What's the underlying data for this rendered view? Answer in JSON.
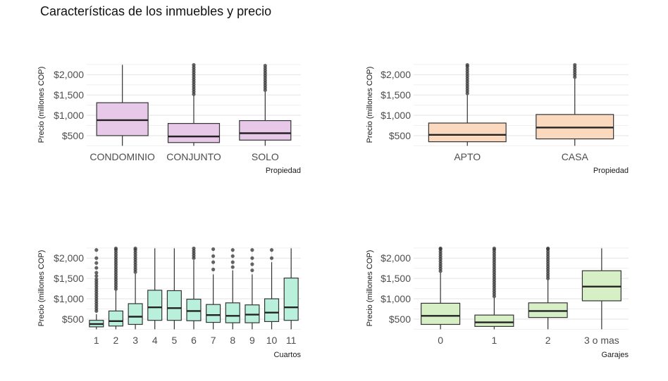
{
  "title": "Características de los inmuebles y precio",
  "chart_data": [
    {
      "type": "box",
      "ylabel": "Precio (millones COP)",
      "xlabel": "Propiedad",
      "ylim": [
        240,
        2280
      ],
      "yticks": [
        500,
        1000,
        1500,
        2000
      ],
      "ytick_labels": [
        "$500",
        "$1,000",
        "$1,500",
        "$2,000"
      ],
      "fill": "#e8c8e8",
      "outlier_color": "#333333",
      "categories": [
        "CONDOMINIO",
        "CONJUNTO",
        "SOLO"
      ],
      "boxes": [
        {
          "low": 250,
          "q1": 500,
          "median": 880,
          "q3": 1310,
          "high": 2240,
          "outliers": []
        },
        {
          "low": 250,
          "q1": 330,
          "median": 480,
          "q3": 800,
          "high": 1490,
          "outliers": [
            1520,
            1580,
            1640,
            1700,
            1760,
            1820,
            1880,
            1940,
            2000,
            2060,
            2120,
            2180,
            2240
          ]
        },
        {
          "low": 250,
          "q1": 390,
          "median": 560,
          "q3": 870,
          "high": 1580,
          "outliers": [
            1620,
            1680,
            1740,
            1800,
            1860,
            1920,
            1980,
            2040,
            2100,
            2160,
            2220
          ]
        }
      ]
    },
    {
      "type": "box",
      "ylabel": "Precio (millones COP)",
      "xlabel": "Propiedad",
      "ylim": [
        240,
        2280
      ],
      "yticks": [
        500,
        1000,
        1500,
        2000
      ],
      "ytick_labels": [
        "$500",
        "$1,000",
        "$1,500",
        "$2,000"
      ],
      "fill": "#fbd9bf",
      "outlier_color": "#333333",
      "categories": [
        "APTO",
        "CASA"
      ],
      "boxes": [
        {
          "low": 250,
          "q1": 350,
          "median": 520,
          "q3": 810,
          "high": 1500,
          "outliers": [
            1540,
            1600,
            1660,
            1720,
            1780,
            1840,
            1900,
            1960,
            2020,
            2080,
            2140,
            2200,
            2240
          ]
        },
        {
          "low": 250,
          "q1": 420,
          "median": 700,
          "q3": 1020,
          "high": 1900,
          "outliers": [
            1940,
            2000,
            2060,
            2120,
            2180,
            2240
          ]
        }
      ]
    },
    {
      "type": "box",
      "ylabel": "Precio (millones COP)",
      "xlabel": "Cuartos",
      "ylim": [
        240,
        2280
      ],
      "yticks": [
        500,
        1000,
        1500,
        2000
      ],
      "ytick_labels": [
        "$500",
        "$1,000",
        "$1,500",
        "$2,000"
      ],
      "fill": "#b8f0dc",
      "outlier_color": "#333333",
      "categories": [
        "1",
        "2",
        "3",
        "4",
        "5",
        "6",
        "7",
        "8",
        "9",
        "10",
        "11"
      ],
      "boxes": [
        {
          "low": 250,
          "q1": 310,
          "median": 380,
          "q3": 470,
          "high": 620,
          "outliers": [
            700,
            760,
            820,
            880,
            940,
            1000,
            1060,
            1120,
            1180,
            1240,
            1300,
            1360,
            1420,
            1480,
            1560,
            1640,
            1760,
            1880,
            2000,
            2200
          ]
        },
        {
          "low": 250,
          "q1": 330,
          "median": 450,
          "q3": 700,
          "high": 1200,
          "outliers": [
            1240,
            1300,
            1360,
            1420,
            1480,
            1540,
            1600,
            1660,
            1720,
            1780,
            1840,
            1900,
            1960,
            2020,
            2080,
            2140,
            2200,
            2240
          ]
        },
        {
          "low": 250,
          "q1": 370,
          "median": 560,
          "q3": 880,
          "high": 1620,
          "outliers": [
            1660,
            1720,
            1780,
            1840,
            1900,
            1960,
            2020,
            2080,
            2140,
            2200,
            2240
          ]
        },
        {
          "low": 250,
          "q1": 470,
          "median": 790,
          "q3": 1210,
          "high": 2240,
          "outliers": []
        },
        {
          "low": 250,
          "q1": 470,
          "median": 770,
          "q3": 1200,
          "high": 2240,
          "outliers": []
        },
        {
          "low": 250,
          "q1": 460,
          "median": 700,
          "q3": 990,
          "high": 1950,
          "outliers": [
            2000,
            2060,
            2120,
            2180,
            2240
          ]
        },
        {
          "low": 250,
          "q1": 420,
          "median": 600,
          "q3": 860,
          "high": 1600,
          "outliers": [
            1720,
            1900,
            2050,
            2220
          ]
        },
        {
          "low": 250,
          "q1": 410,
          "median": 580,
          "q3": 900,
          "high": 1700,
          "outliers": [
            1780,
            1900,
            2050,
            2200
          ]
        },
        {
          "low": 250,
          "q1": 410,
          "median": 610,
          "q3": 850,
          "high": 1600,
          "outliers": [
            1700,
            1850,
            2000,
            2200
          ]
        },
        {
          "low": 250,
          "q1": 440,
          "median": 660,
          "q3": 1000,
          "high": 1900,
          "outliers": [
            2000,
            2200
          ]
        },
        {
          "low": 250,
          "q1": 470,
          "median": 790,
          "q3": 1510,
          "high": 2240,
          "outliers": []
        }
      ]
    },
    {
      "type": "box",
      "ylabel": "Precio (millones COP)",
      "xlabel": "Garajes",
      "ylim": [
        240,
        2280
      ],
      "yticks": [
        500,
        1000,
        1500,
        2000
      ],
      "ytick_labels": [
        "$500",
        "$1,000",
        "$1,500",
        "$2,000"
      ],
      "fill": "#d6efc4",
      "outlier_color": "#333333",
      "categories": [
        "0",
        "1",
        "2",
        "3 o mas"
      ],
      "boxes": [
        {
          "low": 250,
          "q1": 370,
          "median": 580,
          "q3": 890,
          "high": 1640,
          "outliers": [
            1680,
            1740,
            1800,
            1860,
            1920,
            1980,
            2040,
            2100,
            2160,
            2220,
            2240
          ]
        },
        {
          "low": 250,
          "q1": 320,
          "median": 420,
          "q3": 600,
          "high": 1020,
          "outliers": [
            1060,
            1120,
            1180,
            1240,
            1300,
            1360,
            1420,
            1480,
            1540,
            1600,
            1660,
            1720,
            1780,
            1840,
            1900,
            1960,
            2020,
            2080,
            2140,
            2200,
            2240
          ]
        },
        {
          "low": 250,
          "q1": 540,
          "median": 700,
          "q3": 900,
          "high": 1460,
          "outliers": [
            1500,
            1560,
            1620,
            1680,
            1740,
            1800,
            1860,
            1920,
            1980,
            2040,
            2100,
            2160,
            2220,
            2240
          ]
        },
        {
          "low": 250,
          "q1": 950,
          "median": 1300,
          "q3": 1690,
          "high": 2240,
          "outliers": []
        }
      ]
    }
  ]
}
